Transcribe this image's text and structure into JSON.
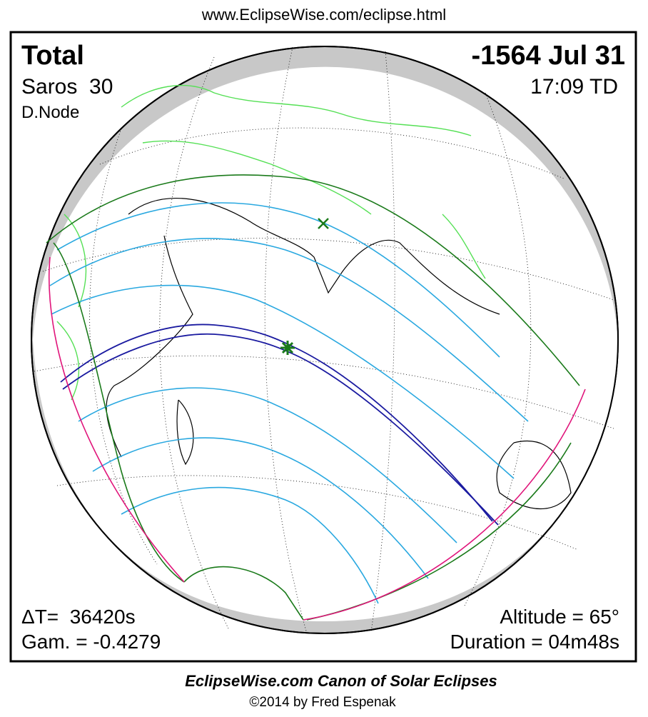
{
  "header": {
    "url": "www.EclipseWise.com/eclipse.html"
  },
  "info": {
    "type": "Total",
    "saros": "Saros  30",
    "node": "D.Node",
    "date": "-1564 Jul 31",
    "time": "17:09 TD",
    "delta_t": "ΔT=  36420s",
    "gamma": "Gam. = -0.4279",
    "altitude": "Altitude = 65°",
    "duration": "Duration = 04m48s"
  },
  "footer": {
    "title": "EclipseWise.com Canon of Solar Eclipses",
    "copyright": "©2014 by Fred Espenak"
  }
}
